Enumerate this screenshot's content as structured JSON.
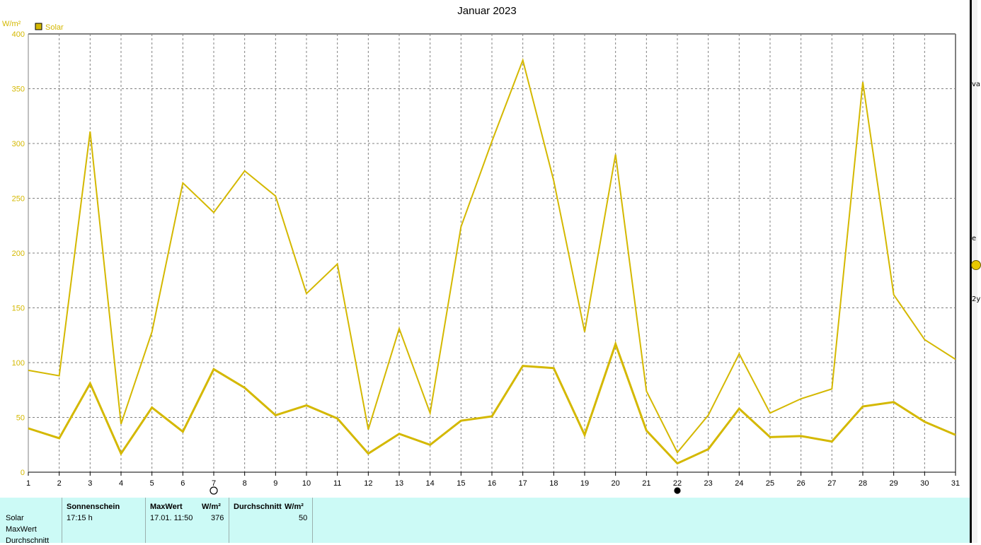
{
  "chart_data": {
    "type": "line",
    "title": "Januar 2023",
    "ylabel": "W/m²",
    "legend": [
      "Solar"
    ],
    "legend_position": "top-left",
    "grid": true,
    "color": "#d4b800",
    "x": [
      1,
      2,
      3,
      4,
      5,
      6,
      7,
      8,
      9,
      10,
      11,
      12,
      13,
      14,
      15,
      16,
      17,
      18,
      19,
      20,
      21,
      22,
      23,
      24,
      25,
      26,
      27,
      28,
      29,
      30,
      31
    ],
    "ylim": [
      0,
      400
    ],
    "yticks": [
      0,
      50,
      100,
      150,
      200,
      250,
      300,
      350,
      400
    ],
    "series": [
      {
        "values": [
          93,
          88,
          311,
          44,
          128,
          264,
          237,
          275,
          252,
          163,
          190,
          39,
          131,
          54,
          224,
          302,
          376,
          266,
          128,
          290,
          74,
          18,
          52,
          108,
          54,
          67,
          76,
          356,
          162,
          121,
          103
        ]
      },
      {
        "values": [
          40,
          31,
          81,
          17,
          59,
          37,
          94,
          77,
          52,
          61,
          49,
          17,
          35,
          25,
          47,
          51,
          97,
          95,
          34,
          117,
          38,
          8,
          21,
          58,
          32,
          33,
          28,
          60,
          64,
          46,
          34
        ]
      }
    ],
    "markers": [
      {
        "x": 7,
        "symbol": "open-circle"
      },
      {
        "x": 22,
        "symbol": "filled-circle"
      }
    ]
  },
  "table": {
    "row_labels": [
      "Solar",
      "MaxWert",
      "Durchschnitt"
    ],
    "sonnenschein": {
      "header": "Sonnenschein",
      "value": "17:15 h"
    },
    "maxwert": {
      "header": "MaxWert",
      "unit": "W/m²",
      "time": "17.01.  11:50",
      "value": "376"
    },
    "durchschnitt": {
      "header": "Durchschnitt",
      "unit": "W/m²",
      "value": "50"
    }
  },
  "right_strip": {
    "texts": [
      "va",
      "e",
      "2y"
    ]
  }
}
